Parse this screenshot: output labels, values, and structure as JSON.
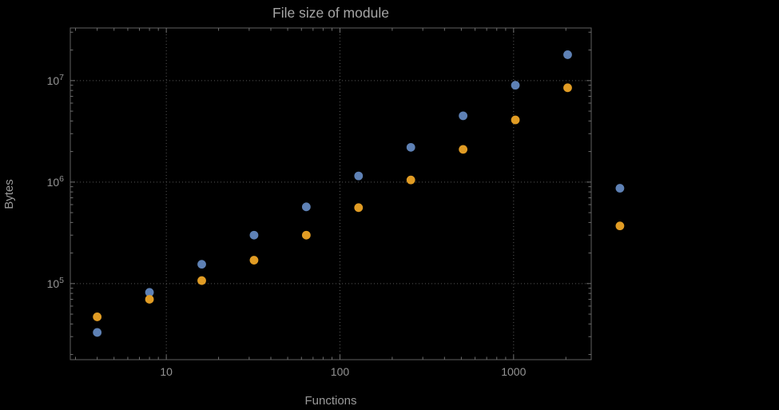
{
  "page": {
    "background": "#000000"
  },
  "chart_data": {
    "type": "scatter",
    "title": "File size of module",
    "xlabel": "Functions",
    "ylabel": "Bytes",
    "x_scale": "log",
    "y_scale": "log",
    "grid": true,
    "legend": "none",
    "xlim": [
      2.8,
      2800
    ],
    "ylim": [
      17800,
      33000000
    ],
    "x": [
      4,
      8,
      16,
      32,
      64,
      128,
      256,
      512,
      1024,
      2048,
      4096
    ],
    "series": [
      {
        "name": "blue",
        "color": "#5e81b5",
        "values": [
          33000,
          82000,
          155000,
          300000,
          570000,
          1150000,
          2200000,
          4500000,
          9000000,
          18000000,
          870000
        ]
      },
      {
        "name": "orange",
        "color": "#e19c24",
        "values": [
          47000,
          70000,
          107000,
          170000,
          300000,
          560000,
          1050000,
          2100000,
          4100000,
          8500000,
          370000
        ]
      }
    ],
    "x_ticks": [
      {
        "value": 10,
        "label": "10"
      },
      {
        "value": 100,
        "label": "100"
      },
      {
        "value": 1000,
        "label": "1000"
      }
    ],
    "y_ticks": [
      {
        "base": "10",
        "exp": "5"
      },
      {
        "base": "10",
        "exp": "6"
      },
      {
        "base": "10",
        "exp": "7"
      }
    ]
  }
}
